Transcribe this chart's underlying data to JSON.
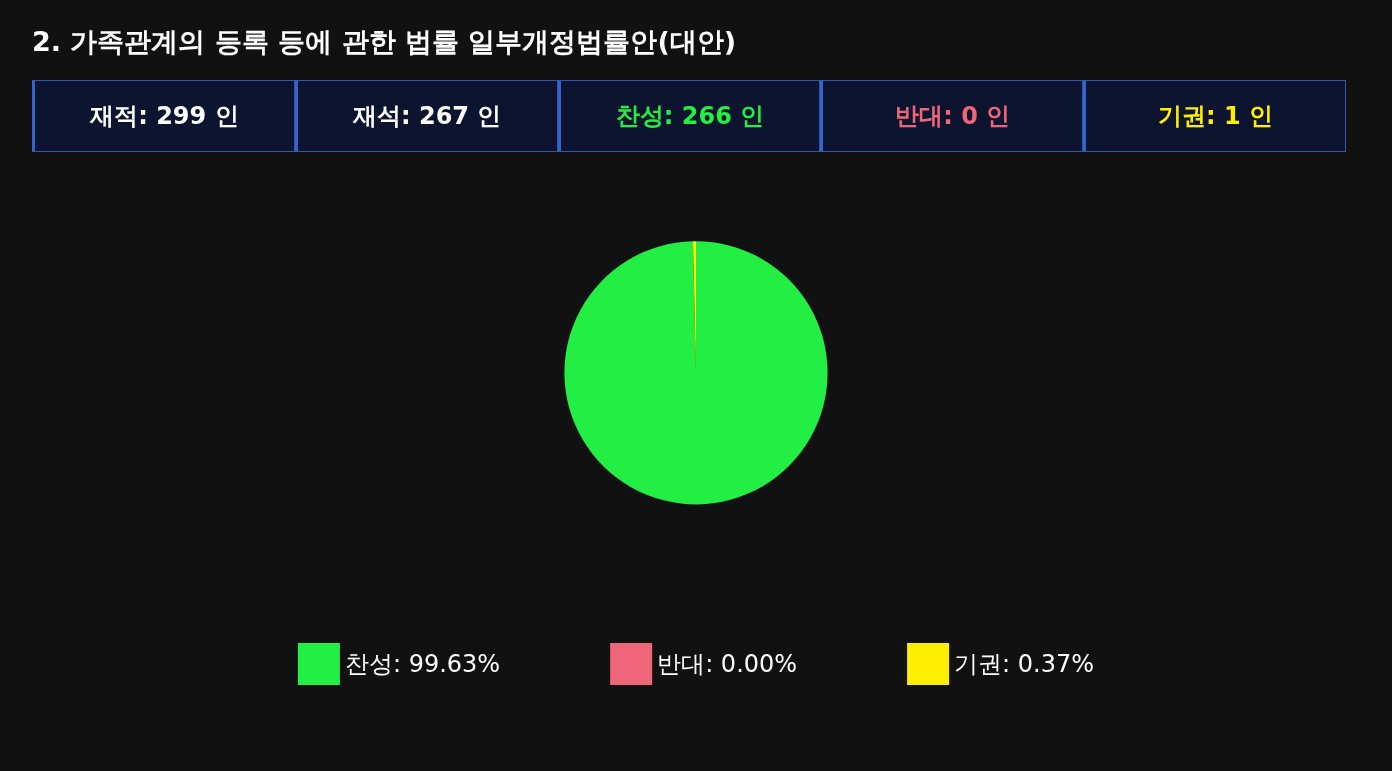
{
  "chart_data": {
    "type": "pie",
    "title": "2. 가족관계의 등록 등에 관한 법률 일부개정법률안(대안)",
    "annotations": [
      "재적: 299 인",
      "재석: 267 인",
      "찬성: 266 인",
      "반대:  0 인",
      "기권:  1 인"
    ],
    "categories": [
      "찬성: 99.63%",
      "반대: 0.00%",
      "기권: 0.37%"
    ],
    "values": [
      99.63,
      0,
      0.37
    ],
    "colors": [
      "#22ee44",
      "#ee6677",
      "#ffee00"
    ],
    "legend": "bottom"
  }
}
